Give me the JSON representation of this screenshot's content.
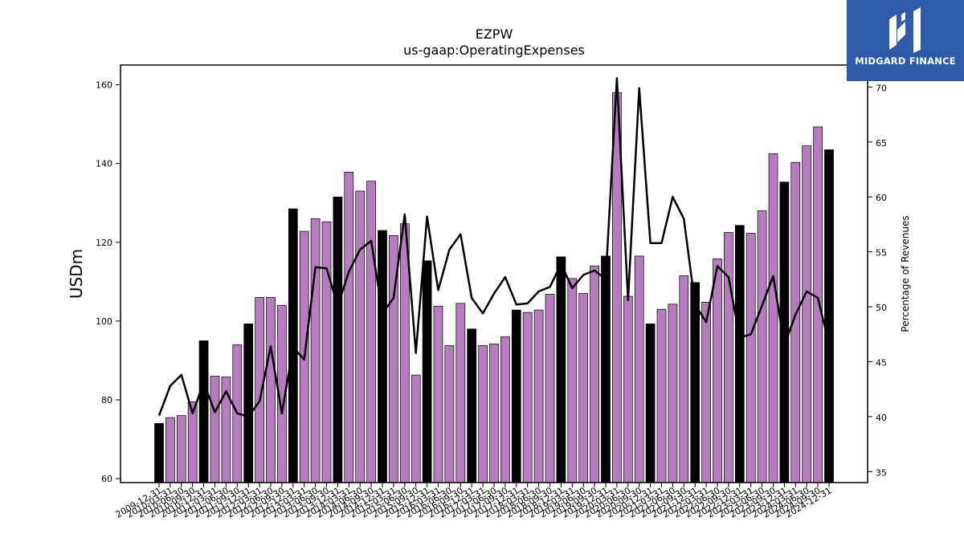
{
  "chart_data": {
    "type": "bar",
    "title": "EZPW",
    "subtitle": "us-gaap:OperatingExpenses",
    "ylabel": "USDm",
    "y2label": "Percentage of Revenues",
    "ylim": [
      59,
      165
    ],
    "y2lim": [
      34,
      72
    ],
    "yticks": [
      60,
      80,
      100,
      120,
      140,
      160
    ],
    "y2ticks": [
      35,
      40,
      45,
      50,
      55,
      60,
      65,
      70
    ],
    "categories": [
      "2009-12-31",
      "2010-03-31",
      "2010-06-30",
      "2010-09-30",
      "2010-12-31",
      "2011-03-31",
      "2011-06-30",
      "2011-09-30",
      "2011-12-31",
      "2012-03-31",
      "2012-06-30",
      "2012-09-30",
      "2012-12-31",
      "2013-03-31",
      "2013-06-30",
      "2013-09-30",
      "2013-12-31",
      "2014-03-31",
      "2014-06-30",
      "2014-09-30",
      "2014-12-31",
      "2015-03-31",
      "2015-06-30",
      "2015-09-30",
      "2015-12-31",
      "2016-03-31",
      "2016-06-30",
      "2016-09-30",
      "2016-12-31",
      "2017-03-31",
      "2017-06-30",
      "2017-09-30",
      "2017-12-31",
      "2018-03-31",
      "2018-06-30",
      "2018-09-30",
      "2018-12-31",
      "2019-03-31",
      "2019-06-30",
      "2019-09-30",
      "2019-12-31",
      "2020-03-31",
      "2020-06-30",
      "2020-09-30",
      "2020-12-31",
      "2021-03-31",
      "2021-06-30",
      "2021-09-30",
      "2021-12-31",
      "2022-03-31",
      "2022-06-30",
      "2022-09-30",
      "2022-12-31",
      "2023-03-31",
      "2023-06-30",
      "2023-09-30",
      "2023-12-31",
      "2024-03-31",
      "2024-06-30",
      "2024-09-30",
      "2024-12-31"
    ],
    "series": [
      {
        "kind": "bar",
        "axis": "left",
        "values": [
          74,
          75.5,
          76,
          79.5,
          95,
          86,
          85.8,
          94,
          99.3,
          106,
          106,
          104,
          128.5,
          122.8,
          126,
          125.2,
          131.5,
          137.8,
          133,
          135.5,
          123,
          121.7,
          124.7,
          86.3,
          115.3,
          103.8,
          93.8,
          104.5,
          98,
          93.8,
          94.2,
          96,
          102.8,
          102.2,
          102.8,
          106.8,
          116.3,
          110.8,
          107,
          114,
          116.5,
          158,
          106.3,
          116.5,
          99.3,
          103,
          104.3,
          111.5,
          109.8,
          104.8,
          115.8,
          122.5,
          124.3,
          122.3,
          128,
          142.5,
          135.3,
          140.3,
          144.5,
          149.3,
          143.5
        ],
        "highlight_every": 4,
        "highlight_color": "#000000",
        "color": "#b77cc0"
      },
      {
        "kind": "line",
        "axis": "right",
        "values": [
          40.1,
          42.8,
          43.8,
          40.3,
          43.1,
          40.4,
          42.3,
          40.3,
          40,
          41.4,
          46.4,
          40.3,
          46.3,
          45.2,
          53.6,
          53.5,
          50.1,
          53.2,
          55.2,
          56,
          49.4,
          50.8,
          58.4,
          45.8,
          58.2,
          51.5,
          55.2,
          56.6,
          50.8,
          49.4,
          51.2,
          52.7,
          50.2,
          50.3,
          51.4,
          51.8,
          53.9,
          51.7,
          52.9,
          53.3,
          52.5,
          70.8,
          50.6,
          69.9,
          55.8,
          55.8,
          60,
          58,
          50.2,
          48.6,
          53.7,
          52.7,
          47.2,
          47.5,
          50.1,
          52.8,
          46.5,
          49.3,
          51.4,
          50.8,
          46.6
        ],
        "color": "#000000"
      }
    ],
    "grid": false
  },
  "logo": {
    "text": "MIDGARD FINANCE"
  }
}
